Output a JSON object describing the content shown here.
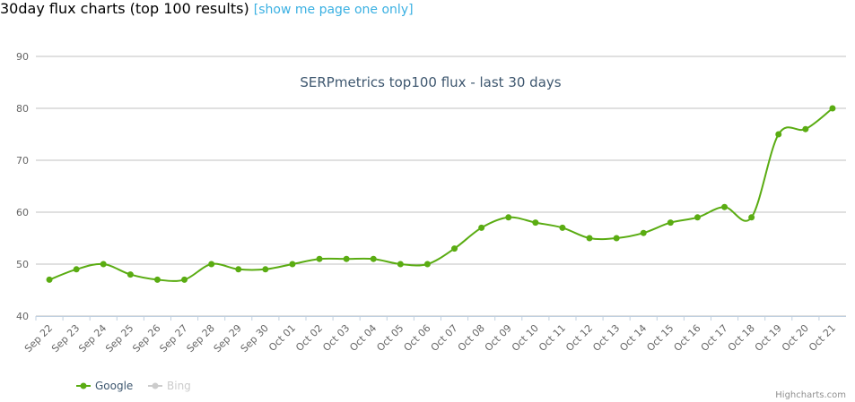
{
  "header": {
    "title": "30day flux charts (top 100 results)",
    "link": "[show me page one only]"
  },
  "chart_data": {
    "type": "line",
    "title": "SERPmetrics top100 flux - last 30 days",
    "categories": [
      "Sep 22",
      "Sep 23",
      "Sep 24",
      "Sep 25",
      "Sep 26",
      "Sep 27",
      "Sep 28",
      "Sep 29",
      "Sep 30",
      "Oct 01",
      "Oct 02",
      "Oct 03",
      "Oct 04",
      "Oct 05",
      "Oct 06",
      "Oct 07",
      "Oct 08",
      "Oct 09",
      "Oct 10",
      "Oct 11",
      "Oct 12",
      "Oct 13",
      "Oct 14",
      "Oct 15",
      "Oct 16",
      "Oct 17",
      "Oct 18",
      "Oct 19",
      "Oct 20",
      "Oct 21"
    ],
    "series": [
      {
        "name": "Google",
        "color": "#5aac12",
        "values": [
          47,
          49,
          50,
          48,
          47,
          47,
          50,
          49,
          49,
          50,
          51,
          51,
          51,
          50,
          50,
          53,
          57,
          59,
          58,
          57,
          55,
          55,
          56,
          58,
          59,
          61,
          59,
          75,
          76,
          80
        ]
      },
      {
        "name": "Bing",
        "color": "#cccccc",
        "visible": false
      }
    ],
    "ylim": [
      40,
      90
    ],
    "yticks": [
      40,
      50,
      60,
      70,
      80,
      90
    ],
    "grid": true,
    "legend": "bottom-left",
    "credits": "Highcharts.com"
  }
}
